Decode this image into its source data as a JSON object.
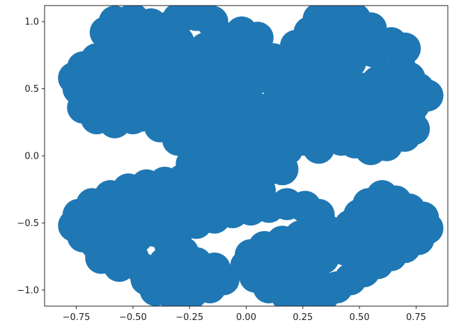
{
  "chart_data": {
    "type": "scatter",
    "title": "",
    "xlabel": "",
    "ylabel": "",
    "xlim": [
      -0.89,
      0.89
    ],
    "ylim": [
      -1.12,
      1.12
    ],
    "grid": false,
    "legend": "none",
    "xticks": [
      {
        "value": -0.75,
        "label": "−0.75"
      },
      {
        "value": -0.5,
        "label": "−0.50"
      },
      {
        "value": -0.25,
        "label": "−0.25"
      },
      {
        "value": 0.0,
        "label": "0.00"
      },
      {
        "value": 0.25,
        "label": "0.25"
      },
      {
        "value": 0.5,
        "label": "0.50"
      },
      {
        "value": 0.75,
        "label": "0.75"
      }
    ],
    "yticks": [
      {
        "value": -1.0,
        "label": "−1.0"
      },
      {
        "value": -0.5,
        "label": "−0.5"
      },
      {
        "value": 0.0,
        "label": "0.0"
      },
      {
        "value": 0.5,
        "label": "0.5"
      },
      {
        "value": 1.0,
        "label": "1.0"
      }
    ],
    "series": [
      {
        "color": "#1f77b4",
        "shape": "point-cloud tracing a dragon-curve-like fractal of curled lobes",
        "extent": {
          "x": [
            -0.78,
            0.82
          ],
          "y": [
            -1.1,
            1.09
          ]
        },
        "points": [
          [
            0.02,
            0.13
          ],
          [
            0.12,
            0.18
          ],
          [
            -0.1,
            0.12
          ],
          [
            -0.22,
            0.04
          ],
          [
            0.22,
            0.28
          ],
          [
            0.18,
            0.05
          ],
          [
            -0.05,
            0.0
          ],
          [
            0.08,
            -0.02
          ],
          [
            0.3,
            0.32
          ],
          [
            0.38,
            0.38
          ],
          [
            0.45,
            0.45
          ],
          [
            0.52,
            0.5
          ],
          [
            0.58,
            0.55
          ],
          [
            0.62,
            0.6
          ],
          [
            0.68,
            0.65
          ],
          [
            0.72,
            0.58
          ],
          [
            0.76,
            0.5
          ],
          [
            0.8,
            0.45
          ],
          [
            0.74,
            0.38
          ],
          [
            0.66,
            0.3
          ],
          [
            0.58,
            0.22
          ],
          [
            0.5,
            0.18
          ],
          [
            0.42,
            0.12
          ],
          [
            0.36,
            0.22
          ],
          [
            0.28,
            0.5
          ],
          [
            0.22,
            0.58
          ],
          [
            0.3,
            0.62
          ],
          [
            0.4,
            0.66
          ],
          [
            0.45,
            0.78
          ],
          [
            0.5,
            0.88
          ],
          [
            0.55,
            0.95
          ],
          [
            0.48,
            1.02
          ],
          [
            0.4,
            1.05
          ],
          [
            0.32,
            1.02
          ],
          [
            0.46,
            0.7
          ],
          [
            0.56,
            0.78
          ],
          [
            0.64,
            0.84
          ],
          [
            0.7,
            0.8
          ],
          [
            0.7,
            0.15
          ],
          [
            0.62,
            0.08
          ],
          [
            0.55,
            0.05
          ],
          [
            0.48,
            0.1
          ],
          [
            0.6,
            0.35
          ],
          [
            0.68,
            0.42
          ],
          [
            0.72,
            0.3
          ],
          [
            0.54,
            0.4
          ],
          [
            0.35,
            0.5
          ],
          [
            0.44,
            0.55
          ],
          [
            0.2,
            0.42
          ],
          [
            0.26,
            0.46
          ],
          [
            0.14,
            0.52
          ],
          [
            0.08,
            0.6
          ],
          [
            0.02,
            0.55
          ],
          [
            -0.06,
            0.62
          ],
          [
            -0.12,
            0.58
          ],
          [
            -0.16,
            0.5
          ],
          [
            -0.22,
            0.52
          ],
          [
            -0.28,
            0.6
          ],
          [
            -0.25,
            0.72
          ],
          [
            -0.18,
            0.8
          ],
          [
            -0.1,
            0.88
          ],
          [
            -0.02,
            0.92
          ],
          [
            0.05,
            0.88
          ],
          [
            -0.05,
            0.78
          ],
          [
            -0.3,
            0.85
          ],
          [
            -0.36,
            0.95
          ],
          [
            -0.3,
            1.02
          ],
          [
            -0.22,
            1.05
          ],
          [
            -0.15,
            1.0
          ],
          [
            -0.42,
            0.98
          ],
          [
            -0.5,
            1.02
          ],
          [
            -0.58,
            1.0
          ],
          [
            -0.5,
            0.9
          ],
          [
            -0.44,
            0.82
          ],
          [
            -0.38,
            0.75
          ],
          [
            -0.45,
            0.7
          ],
          [
            -0.52,
            0.74
          ],
          [
            -0.6,
            0.78
          ],
          [
            -0.66,
            0.72
          ],
          [
            -0.72,
            0.66
          ],
          [
            -0.76,
            0.58
          ],
          [
            -0.74,
            0.5
          ],
          [
            -0.68,
            0.44
          ],
          [
            -0.62,
            0.38
          ],
          [
            -0.56,
            0.32
          ],
          [
            -0.5,
            0.28
          ],
          [
            -0.58,
            0.25
          ],
          [
            -0.66,
            0.28
          ],
          [
            -0.72,
            0.36
          ],
          [
            -0.6,
            0.55
          ],
          [
            -0.52,
            0.6
          ],
          [
            -0.44,
            0.58
          ],
          [
            -0.36,
            0.5
          ],
          [
            -0.3,
            0.42
          ],
          [
            -0.46,
            0.46
          ],
          [
            -0.4,
            0.64
          ],
          [
            -0.15,
            0.35
          ],
          [
            -0.05,
            0.4
          ],
          [
            0.05,
            0.35
          ],
          [
            0.1,
            0.3
          ],
          [
            0.0,
            0.25
          ],
          [
            -0.08,
            0.22
          ],
          [
            -0.18,
            0.25
          ],
          [
            -0.2,
            0.15
          ],
          [
            -0.12,
            -0.05
          ],
          [
            -0.2,
            -0.12
          ],
          [
            -0.28,
            -0.18
          ],
          [
            -0.36,
            -0.2
          ],
          [
            -0.44,
            -0.22
          ],
          [
            -0.52,
            -0.25
          ],
          [
            -0.6,
            -0.3
          ],
          [
            -0.68,
            -0.36
          ],
          [
            -0.74,
            -0.44
          ],
          [
            -0.76,
            -0.52
          ],
          [
            -0.72,
            -0.6
          ],
          [
            -0.66,
            -0.66
          ],
          [
            -0.58,
            -0.7
          ],
          [
            -0.5,
            -0.76
          ],
          [
            -0.46,
            -0.84
          ],
          [
            -0.44,
            -0.92
          ],
          [
            -0.4,
            -1.0
          ],
          [
            -0.32,
            -1.04
          ],
          [
            -0.24,
            -1.02
          ],
          [
            -0.16,
            -0.98
          ],
          [
            -0.1,
            -0.92
          ],
          [
            -0.14,
            -0.84
          ],
          [
            -0.22,
            -0.8
          ],
          [
            -0.28,
            -0.72
          ],
          [
            -0.34,
            -0.64
          ],
          [
            -0.3,
            -0.55
          ],
          [
            -0.22,
            -0.5
          ],
          [
            -0.14,
            -0.46
          ],
          [
            -0.06,
            -0.42
          ],
          [
            0.02,
            -0.4
          ],
          [
            0.1,
            -0.38
          ],
          [
            0.18,
            -0.36
          ],
          [
            0.26,
            -0.38
          ],
          [
            0.32,
            -0.44
          ],
          [
            0.3,
            -0.52
          ],
          [
            0.24,
            -0.6
          ],
          [
            0.16,
            -0.64
          ],
          [
            0.08,
            -0.68
          ],
          [
            0.02,
            -0.74
          ],
          [
            0.0,
            -0.82
          ],
          [
            0.04,
            -0.9
          ],
          [
            0.1,
            -0.98
          ],
          [
            0.18,
            -1.04
          ],
          [
            0.26,
            -1.06
          ],
          [
            0.34,
            -1.04
          ],
          [
            0.4,
            -0.98
          ],
          [
            0.46,
            -0.92
          ],
          [
            0.52,
            -0.86
          ],
          [
            0.58,
            -0.8
          ],
          [
            0.64,
            -0.74
          ],
          [
            0.7,
            -0.68
          ],
          [
            0.76,
            -0.62
          ],
          [
            0.8,
            -0.54
          ],
          [
            0.78,
            -0.46
          ],
          [
            0.72,
            -0.4
          ],
          [
            0.66,
            -0.34
          ],
          [
            0.6,
            -0.3
          ],
          [
            0.54,
            -0.36
          ],
          [
            0.5,
            -0.44
          ],
          [
            0.46,
            -0.52
          ],
          [
            0.42,
            -0.6
          ],
          [
            0.38,
            -0.68
          ],
          [
            0.34,
            -0.76
          ],
          [
            0.3,
            -0.84
          ],
          [
            0.22,
            -0.88
          ],
          [
            0.14,
            -0.84
          ],
          [
            0.08,
            -0.78
          ],
          [
            0.12,
            -0.7
          ],
          [
            0.2,
            -0.72
          ],
          [
            0.28,
            -0.68
          ],
          [
            0.36,
            -0.56
          ],
          [
            0.44,
            -0.7
          ],
          [
            0.5,
            -0.62
          ],
          [
            0.56,
            -0.56
          ],
          [
            0.62,
            -0.5
          ],
          [
            0.68,
            -0.56
          ],
          [
            0.72,
            -0.5
          ],
          [
            0.64,
            -0.62
          ],
          [
            0.56,
            -0.68
          ],
          [
            0.5,
            -0.78
          ],
          [
            -0.48,
            -0.6
          ],
          [
            -0.4,
            -0.56
          ],
          [
            -0.42,
            -0.46
          ],
          [
            -0.5,
            -0.42
          ],
          [
            -0.58,
            -0.46
          ],
          [
            -0.62,
            -0.54
          ],
          [
            -0.56,
            -0.6
          ],
          [
            -0.38,
            -0.38
          ],
          [
            -0.3,
            -0.3
          ],
          [
            -0.22,
            -0.26
          ],
          [
            -0.14,
            -0.2
          ],
          [
            -0.06,
            -0.15
          ],
          [
            0.0,
            -0.2
          ],
          [
            0.06,
            -0.26
          ],
          [
            0.0,
            -0.32
          ],
          [
            -0.1,
            -0.32
          ],
          [
            -0.2,
            -0.36
          ],
          [
            -0.28,
            -0.44
          ],
          [
            -0.36,
            -0.8
          ],
          [
            -0.3,
            -0.88
          ],
          [
            -0.22,
            -0.92
          ],
          [
            -0.28,
            -0.96
          ],
          [
            -0.38,
            -0.9
          ],
          [
            -0.56,
            -0.82
          ],
          [
            -0.64,
            -0.76
          ],
          [
            -0.7,
            -0.5
          ],
          [
            -0.66,
            -0.42
          ],
          [
            -0.6,
            -0.38
          ],
          [
            0.12,
            0.0
          ],
          [
            0.16,
            -0.1
          ],
          [
            0.08,
            -0.12
          ],
          [
            0.02,
            -0.08
          ],
          [
            0.26,
            0.12
          ],
          [
            0.32,
            0.06
          ],
          [
            0.3,
            0.18
          ],
          [
            0.24,
            0.2
          ],
          [
            -0.02,
            0.06
          ],
          [
            -0.12,
            0.02
          ],
          [
            -0.18,
            -0.04
          ],
          [
            0.1,
            0.08
          ],
          [
            0.4,
            0.3
          ],
          [
            0.46,
            0.24
          ],
          [
            0.36,
            0.28
          ],
          [
            0.54,
            0.28
          ],
          [
            0.62,
            0.48
          ],
          [
            0.7,
            0.52
          ],
          [
            0.66,
            0.22
          ],
          [
            0.74,
            0.2
          ],
          [
            0.14,
            0.62
          ],
          [
            0.2,
            0.66
          ],
          [
            0.26,
            0.7
          ],
          [
            0.34,
            0.74
          ],
          [
            0.38,
            0.86
          ],
          [
            0.42,
            0.94
          ],
          [
            0.28,
            0.92
          ],
          [
            0.22,
            0.82
          ],
          [
            0.12,
            0.72
          ],
          [
            0.04,
            0.7
          ],
          [
            -0.04,
            0.7
          ],
          [
            -0.1,
            0.7
          ],
          [
            -0.2,
            0.64
          ],
          [
            -0.32,
            0.68
          ],
          [
            -0.08,
            0.5
          ],
          [
            0.0,
            0.46
          ],
          [
            -0.52,
            0.48
          ],
          [
            -0.62,
            0.48
          ],
          [
            -0.68,
            0.52
          ],
          [
            -0.64,
            0.62
          ],
          [
            -0.56,
            0.66
          ],
          [
            -0.48,
            0.82
          ],
          [
            -0.56,
            0.86
          ],
          [
            -0.62,
            0.92
          ],
          [
            -0.34,
            0.3
          ],
          [
            -0.42,
            0.36
          ],
          [
            -0.26,
            0.34
          ],
          [
            -0.28,
            0.24
          ],
          [
            -0.38,
            0.22
          ],
          [
            -0.46,
            0.3
          ],
          [
            -0.3,
            0.12
          ],
          [
            -0.24,
            -0.06
          ]
        ]
      }
    ]
  }
}
